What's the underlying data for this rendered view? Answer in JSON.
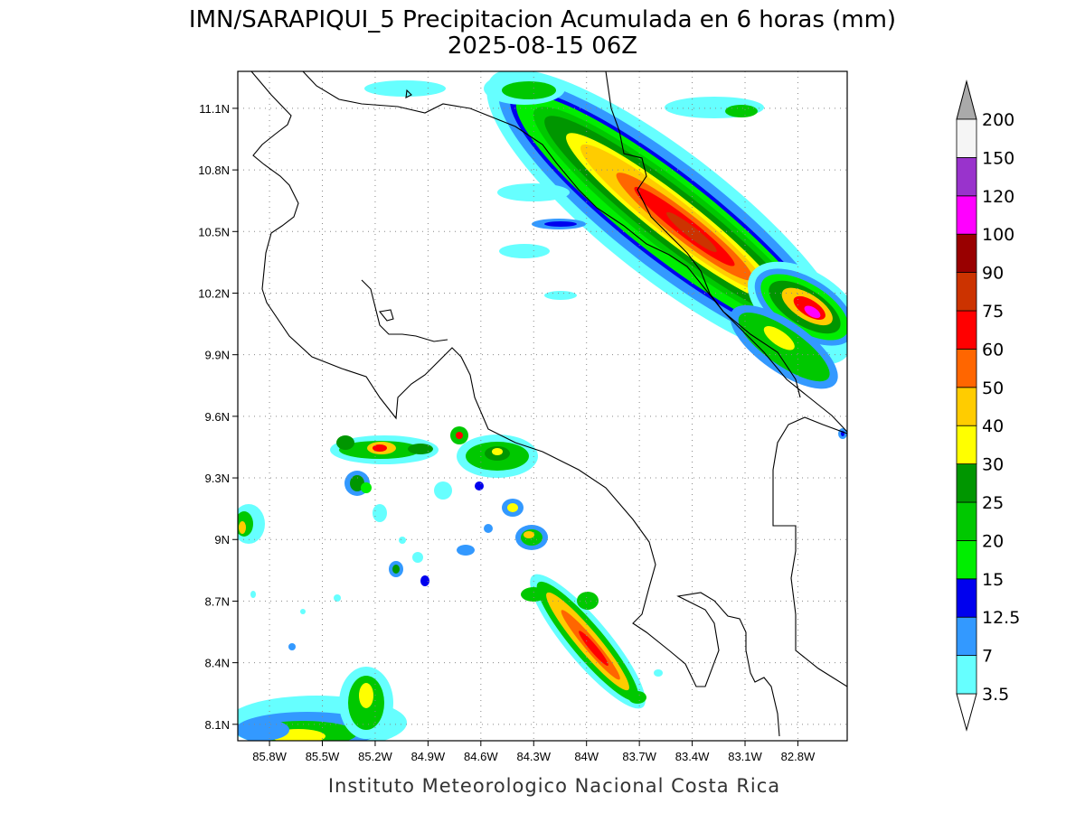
{
  "header": {
    "title_line1": "IMN/SARAPIQUI_5 Precipitacion Acumulada en 6 horas (mm)",
    "title_line2": "2025-08-15 06Z"
  },
  "footer": {
    "credit": "Instituto Meteorologico Nacional Costa Rica"
  },
  "map": {
    "lon_range": [
      -85.98,
      -82.52
    ],
    "lat_range": [
      8.02,
      11.28
    ],
    "x_ticks": [
      {
        "value": -85.8,
        "label": "85.8W"
      },
      {
        "value": -85.5,
        "label": "85.5W"
      },
      {
        "value": -85.2,
        "label": "85.2W"
      },
      {
        "value": -84.9,
        "label": "84.9W"
      },
      {
        "value": -84.6,
        "label": "84.6W"
      },
      {
        "value": -84.3,
        "label": "84.3W"
      },
      {
        "value": -84.0,
        "label": "84W"
      },
      {
        "value": -83.7,
        "label": "83.7W"
      },
      {
        "value": -83.4,
        "label": "83.4W"
      },
      {
        "value": -83.1,
        "label": "83.1W"
      },
      {
        "value": -82.8,
        "label": "82.8W"
      }
    ],
    "y_ticks": [
      {
        "value": 11.1,
        "label": "11.1N"
      },
      {
        "value": 10.8,
        "label": "10.8N"
      },
      {
        "value": 10.5,
        "label": "10.5N"
      },
      {
        "value": 10.2,
        "label": "10.2N"
      },
      {
        "value": 9.9,
        "label": "9.9N"
      },
      {
        "value": 9.6,
        "label": "9.6N"
      },
      {
        "value": 9.3,
        "label": "9.3N"
      },
      {
        "value": 9.0,
        "label": "9N"
      },
      {
        "value": 8.7,
        "label": "8.7N"
      },
      {
        "value": 8.4,
        "label": "8.4N"
      },
      {
        "value": 8.1,
        "label": "8.1N"
      }
    ],
    "grid": true
  },
  "colorbar": {
    "levels": [
      {
        "label": "3.5",
        "color": "#66ffff"
      },
      {
        "label": "7",
        "color": "#3399ff"
      },
      {
        "label": "12.5",
        "color": "#0000ee"
      },
      {
        "label": "15",
        "color": "#00ee00"
      },
      {
        "label": "20",
        "color": "#00c800"
      },
      {
        "label": "25",
        "color": "#009600"
      },
      {
        "label": "30",
        "color": "#ffff00"
      },
      {
        "label": "40",
        "color": "#ffcc00"
      },
      {
        "label": "50",
        "color": "#ff6600"
      },
      {
        "label": "60",
        "color": "#ff0000"
      },
      {
        "label": "75",
        "color": "#cc3300"
      },
      {
        "label": "90",
        "color": "#990000"
      },
      {
        "label": "100",
        "color": "#ff00ff"
      },
      {
        "label": "120",
        "color": "#9933cc"
      },
      {
        "label": "150",
        "color": "#f5f5f5"
      },
      {
        "label": "200",
        "color": "#aaaaaa"
      }
    ]
  }
}
